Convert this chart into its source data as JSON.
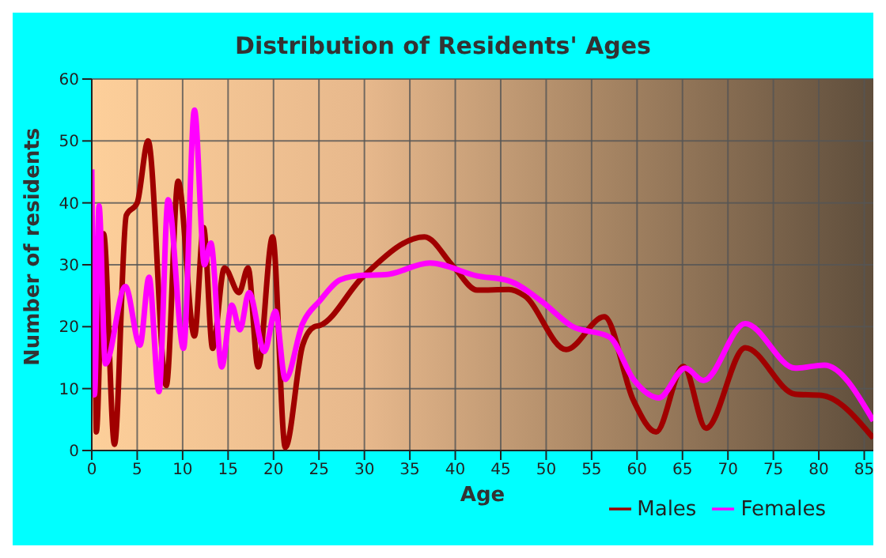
{
  "chart_data": {
    "type": "line",
    "title": "Distribution of Residents' Ages",
    "xlabel": "Age",
    "ylabel": "Number of residents",
    "xlim": [
      0,
      86
    ],
    "xticks": [
      0,
      5,
      10,
      15,
      20,
      25,
      30,
      35,
      40,
      45,
      50,
      55,
      60,
      65,
      70,
      75,
      80,
      85
    ],
    "ylim": [
      0,
      60
    ],
    "yticks": [
      0,
      10,
      20,
      30,
      40,
      50,
      60
    ],
    "grid": true,
    "legend": "bottom right",
    "marker": "none",
    "line_style": "solid",
    "series": [
      {
        "name": "Males",
        "color": "#a00000",
        "x": [
          0,
          0.3,
          0.5,
          1.3,
          2.5,
          3.8,
          5,
          6.2,
          8.2,
          9.5,
          11.3,
          12.3,
          13.3,
          14.6,
          16.2,
          17.2,
          18.3,
          19.9,
          21.3,
          23.2,
          24.5,
          25.1,
          29.8,
          36.6,
          39.8,
          42.4,
          45.9,
          47.6,
          52.2,
          56.4,
          59.6,
          62.1,
          65.1,
          67.6,
          71.9,
          77.4,
          80.3,
          86
        ],
        "values": [
          26,
          33,
          3,
          35,
          1,
          38,
          40,
          50,
          10.5,
          43.5,
          18.5,
          36,
          16.5,
          29.5,
          25.5,
          29.5,
          13.5,
          34.5,
          0.5,
          17,
          20,
          20.2,
          28,
          34.5,
          29.7,
          25.9,
          26,
          25,
          16.3,
          21.6,
          8.1,
          3,
          13.6,
          3.6,
          16.6,
          9.1,
          8.9,
          2
        ]
      },
      {
        "name": "Females",
        "color": "#ff00ff",
        "x": [
          0,
          0.3,
          0.8,
          1.5,
          3.7,
          5.3,
          6.3,
          7.4,
          8.4,
          10.1,
          11.3,
          12.4,
          13.1,
          14.3,
          15.4,
          16.3,
          17.3,
          19,
          20.2,
          21.3,
          23.2,
          25.1,
          27.4,
          29.8,
          32.3,
          37.2,
          42.4,
          45.9,
          49.4,
          52.8,
          57,
          59.6,
          62.4,
          65.3,
          67.3,
          71.9,
          77.4,
          80.6,
          86
        ],
        "values": [
          45.4,
          9,
          39.5,
          14,
          26.5,
          17,
          28,
          9.5,
          40.5,
          16.5,
          55,
          30,
          33.5,
          13.5,
          23.5,
          19.5,
          25.5,
          16,
          22.5,
          11.5,
          20.5,
          24.2,
          27.6,
          28.3,
          28.4,
          30.3,
          28.2,
          27.4,
          24.2,
          20.1,
          18.3,
          11.5,
          8.5,
          13.3,
          11.3,
          20.5,
          13.3,
          13.8,
          4.8
        ]
      }
    ]
  }
}
